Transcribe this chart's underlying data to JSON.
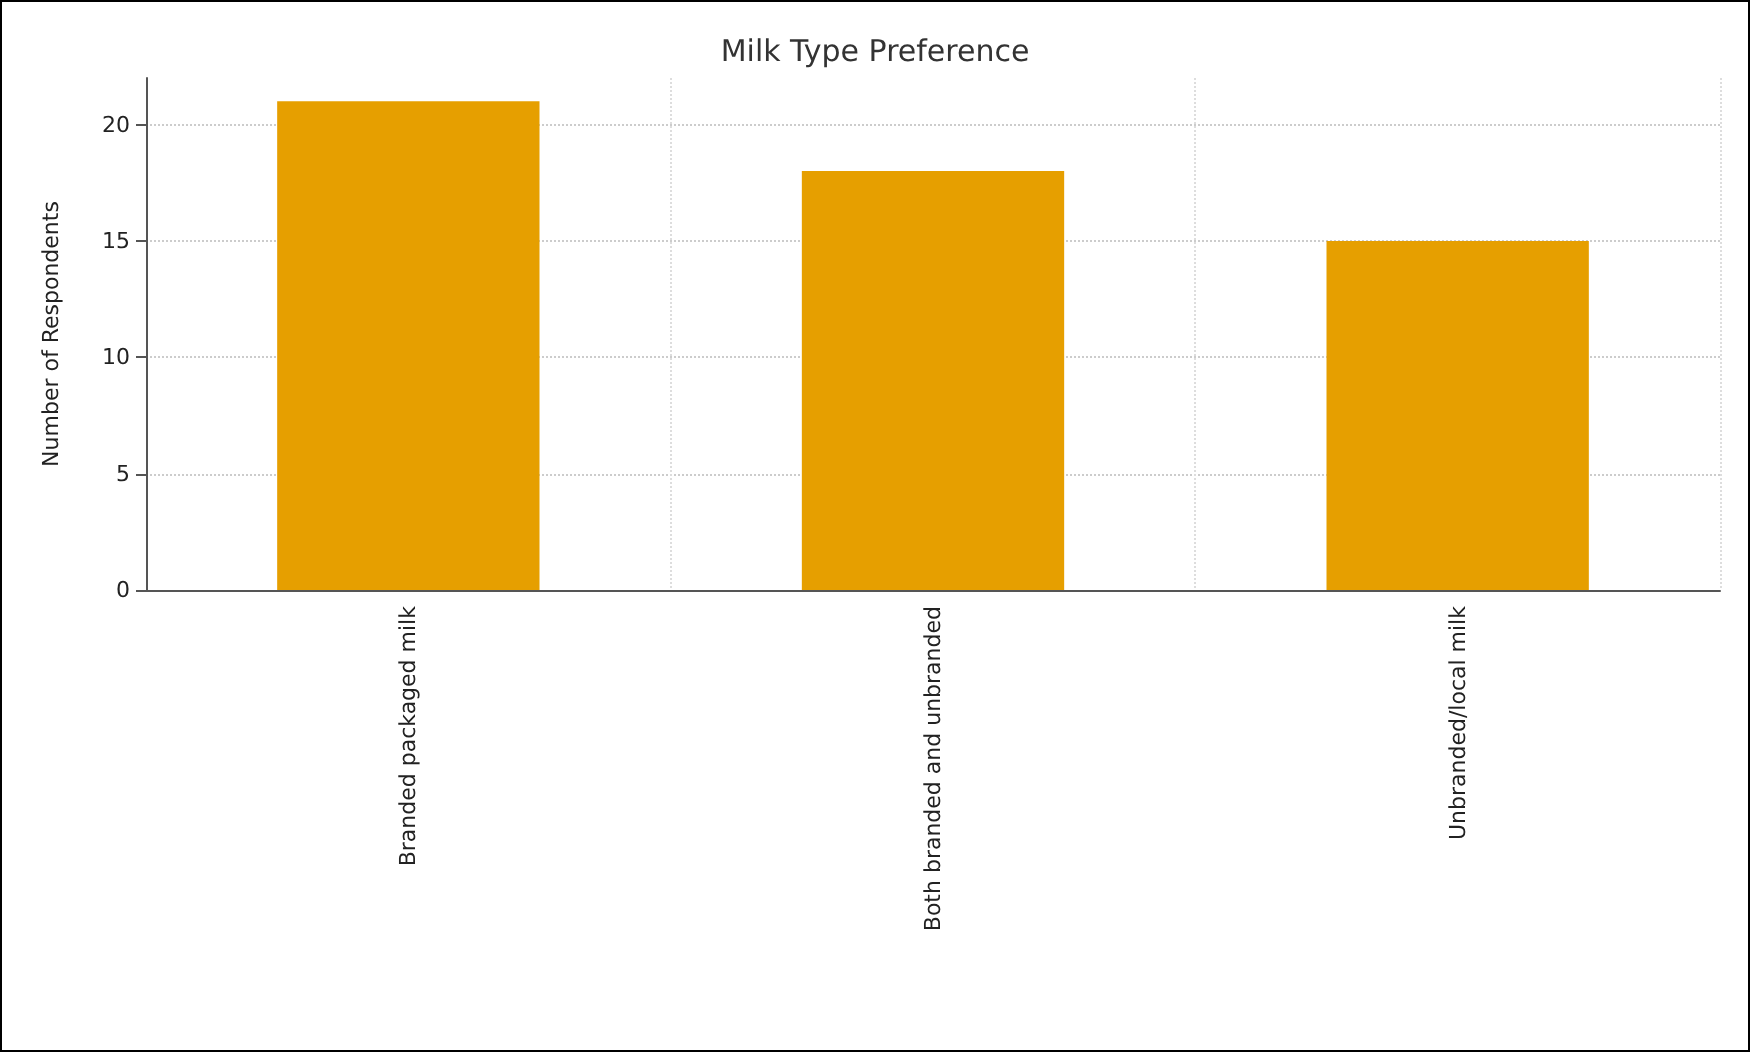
{
  "chart_data": {
    "type": "bar",
    "title": "Milk Type Preference",
    "ylabel": "Number of Respondents",
    "categories": [
      "Branded packaged milk",
      "Both branded and unbranded",
      "Unbranded/local milk"
    ],
    "values": [
      21,
      18,
      15
    ],
    "color": "#e69f00",
    "ylim": [
      0,
      22
    ],
    "yticks": [
      0,
      5,
      10,
      15,
      20
    ],
    "grid": true
  }
}
